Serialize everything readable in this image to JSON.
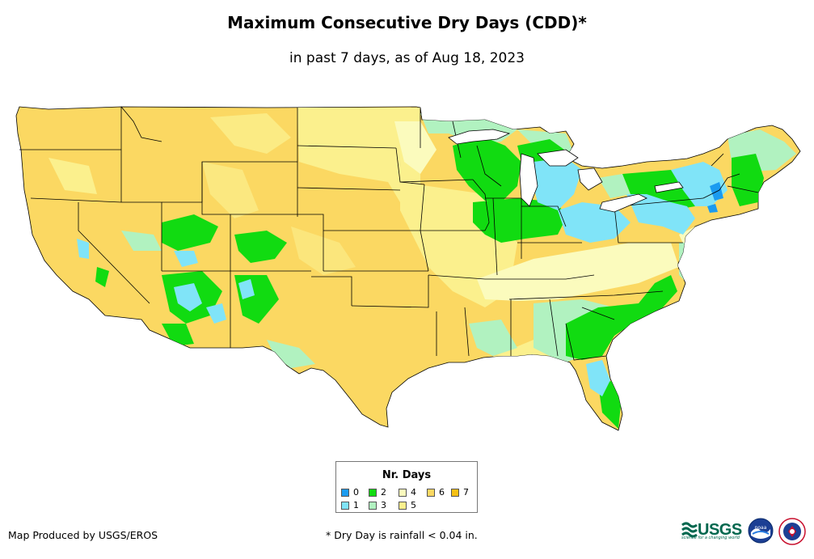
{
  "title": "Maximum Consecutive Dry Days (CDD)*",
  "subtitle": "in past 7 days, as of Aug 18, 2023",
  "legend": {
    "title": "Nr. Days",
    "items": [
      {
        "label": "0",
        "color": "#1a9bf0"
      },
      {
        "label": "1",
        "color": "#80e4f8"
      },
      {
        "label": "2",
        "color": "#11db11"
      },
      {
        "label": "3",
        "color": "#b1f2c0"
      },
      {
        "label": "4",
        "color": "#fbfbbd"
      },
      {
        "label": "5",
        "color": "#fbf08d"
      },
      {
        "label": "6",
        "color": "#fbd862"
      },
      {
        "label": "7",
        "color": "#f6c014"
      }
    ]
  },
  "credit": "Map Produced by USGS/EROS",
  "footnote": "* Dry Day is rainfall < 0.04 in.",
  "logos": {
    "usgs": "USGS",
    "usgs_tagline": "science for a changing world",
    "noaa": "noaa",
    "nws": "NATIONAL WEATHER SERVICE"
  }
}
